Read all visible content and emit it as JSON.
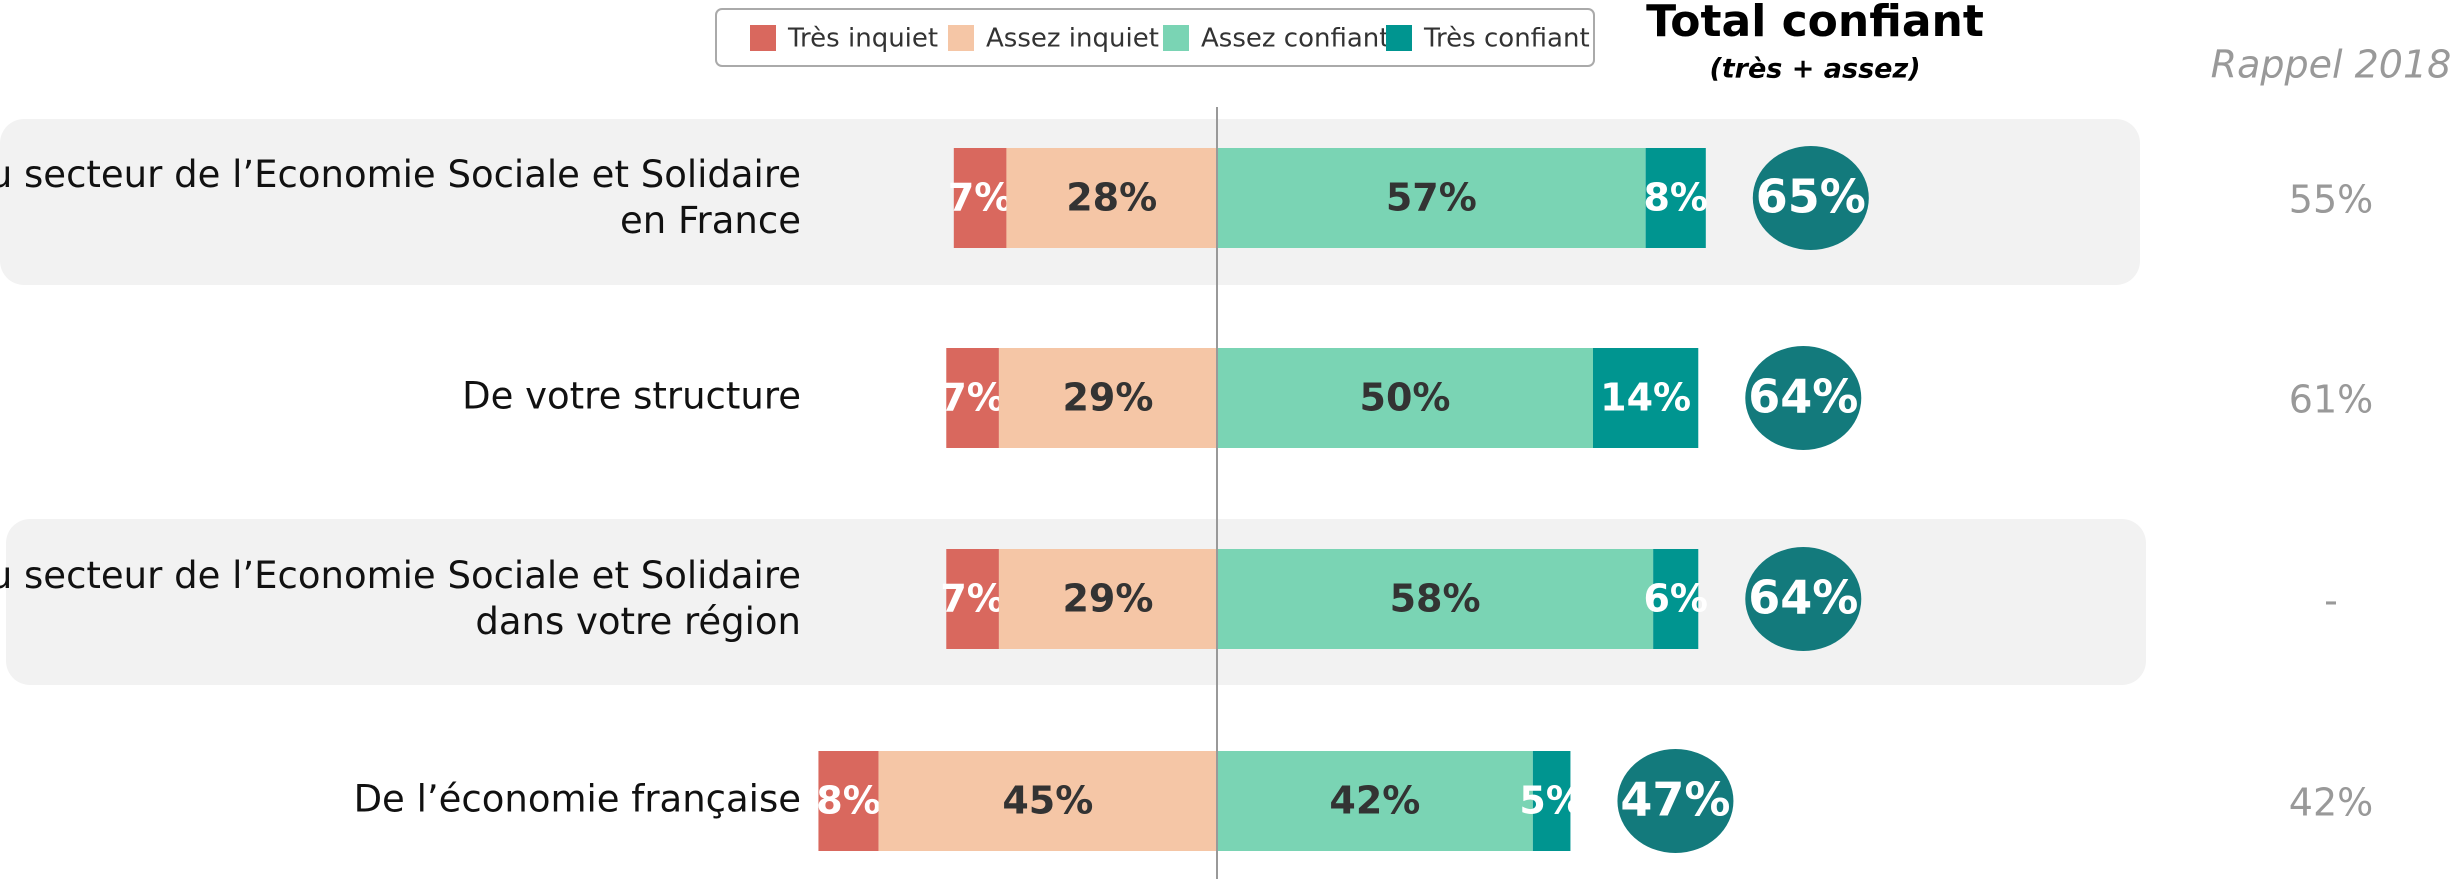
{
  "chart_data": {
    "type": "diverging-bar",
    "categories": [
      "Du secteur de l’Economie Sociale et Solidaire en France",
      "De votre structure",
      "Du secteur de l’Economie Sociale et Solidaire dans votre région",
      "De l’économie française"
    ],
    "series": [
      {
        "name": "Très inquiet",
        "color": "#d9685e",
        "side": "negative",
        "values": [
          7,
          7,
          7,
          8
        ],
        "value_labels": [
          "7%",
          "7%",
          "7%",
          "8%"
        ]
      },
      {
        "name": "Assez inquiet",
        "color": "#f5c6a6",
        "side": "negative",
        "values": [
          28,
          29,
          29,
          45
        ],
        "value_labels": [
          "28%",
          "29%",
          "29%",
          "45%"
        ]
      },
      {
        "name": "Assez confiant",
        "color": "#7ad4b4",
        "side": "positive",
        "values": [
          57,
          50,
          58,
          42
        ],
        "value_labels": [
          "57%",
          "50%",
          "58%",
          "42%"
        ]
      },
      {
        "name": "Très confiant",
        "color": "#009590",
        "side": "positive",
        "values": [
          8,
          14,
          6,
          5
        ],
        "value_labels": [
          "8%",
          "14%",
          "6%",
          "5%"
        ]
      }
    ],
    "total": {
      "title": "Total confiant",
      "subtitle": "(très + assez)",
      "color": "#137a7c",
      "values": [
        65,
        64,
        64,
        47
      ],
      "value_labels": [
        "65%",
        "64%",
        "64%",
        "47%"
      ]
    },
    "rappel": {
      "title": "Rappel 2018",
      "values": [
        55,
        61,
        null,
        42
      ],
      "value_labels": [
        "55%",
        "61%",
        "-",
        "42%"
      ]
    },
    "legend": "top"
  }
}
